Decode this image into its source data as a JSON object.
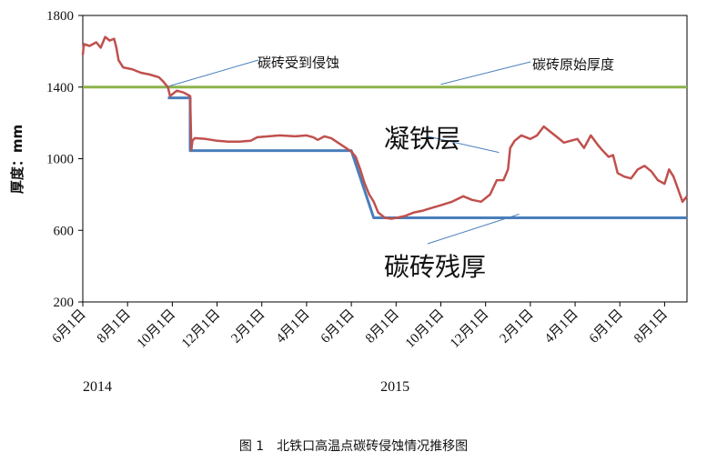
{
  "chart_data": {
    "type": "line",
    "title": "",
    "ylabel": "厚度：mm",
    "ylim": [
      200,
      1800
    ],
    "yticks": [
      200,
      600,
      1000,
      1400,
      1800
    ],
    "xlim": [
      0,
      27
    ],
    "x_unit": "months since 2014-06-01",
    "xticks": [
      {
        "x": 0,
        "label": "6月1日"
      },
      {
        "x": 2,
        "label": "8月1日"
      },
      {
        "x": 4,
        "label": "10月1日"
      },
      {
        "x": 6,
        "label": "12月1日"
      },
      {
        "x": 8,
        "label": "2月1日"
      },
      {
        "x": 10,
        "label": "4月1日"
      },
      {
        "x": 12,
        "label": "6月1日"
      },
      {
        "x": 14,
        "label": "8月1日"
      },
      {
        "x": 16,
        "label": "10月1日"
      },
      {
        "x": 18,
        "label": "12月1日"
      },
      {
        "x": 20,
        "label": "2月1日"
      },
      {
        "x": 22,
        "label": "4月1日"
      },
      {
        "x": 24,
        "label": "6月1日"
      },
      {
        "x": 26,
        "label": "8月1日"
      }
    ],
    "year_labels": [
      {
        "x": 0,
        "label": "2014"
      },
      {
        "x": 13.3,
        "label": "2015"
      }
    ],
    "series": [
      {
        "name": "碳砖原始厚度",
        "color": "#8DB34A",
        "points": [
          [
            0,
            1400
          ],
          [
            27,
            1400
          ]
        ]
      },
      {
        "name": "碳砖残厚",
        "color": "#4A7EBB",
        "points": [
          [
            3.8,
            1340
          ],
          [
            4.8,
            1340
          ],
          [
            4.8,
            1045
          ],
          [
            12.0,
            1045
          ],
          [
            13.0,
            670
          ],
          [
            27,
            670
          ]
        ]
      },
      {
        "name": "厚度",
        "color": "#C0504D",
        "points": [
          [
            0,
            1580
          ],
          [
            0.05,
            1640
          ],
          [
            0.3,
            1630
          ],
          [
            0.6,
            1650
          ],
          [
            0.8,
            1620
          ],
          [
            1.0,
            1680
          ],
          [
            1.2,
            1660
          ],
          [
            1.4,
            1670
          ],
          [
            1.5,
            1620
          ],
          [
            1.6,
            1550
          ],
          [
            1.8,
            1510
          ],
          [
            2.2,
            1500
          ],
          [
            2.6,
            1480
          ],
          [
            3.0,
            1470
          ],
          [
            3.4,
            1455
          ],
          [
            3.6,
            1430
          ],
          [
            3.8,
            1400
          ],
          [
            3.9,
            1350
          ],
          [
            4.2,
            1380
          ],
          [
            4.5,
            1370
          ],
          [
            4.8,
            1350
          ],
          [
            4.85,
            1050
          ],
          [
            4.9,
            1100
          ],
          [
            5.0,
            1115
          ],
          [
            5.5,
            1110
          ],
          [
            6.0,
            1100
          ],
          [
            6.5,
            1095
          ],
          [
            7.0,
            1095
          ],
          [
            7.5,
            1100
          ],
          [
            7.8,
            1120
          ],
          [
            8.3,
            1125
          ],
          [
            8.8,
            1130
          ],
          [
            9.5,
            1125
          ],
          [
            10.0,
            1130
          ],
          [
            10.3,
            1120
          ],
          [
            10.5,
            1105
          ],
          [
            10.8,
            1125
          ],
          [
            11.1,
            1115
          ],
          [
            12.0,
            1040
          ],
          [
            12.2,
            1010
          ],
          [
            12.4,
            940
          ],
          [
            12.6,
            860
          ],
          [
            12.8,
            800
          ],
          [
            13.0,
            760
          ],
          [
            13.2,
            700
          ],
          [
            13.5,
            670
          ],
          [
            13.8,
            665
          ],
          [
            14.1,
            672
          ],
          [
            14.4,
            680
          ],
          [
            14.8,
            700
          ],
          [
            15.2,
            710
          ],
          [
            15.6,
            725
          ],
          [
            16.0,
            740
          ],
          [
            16.5,
            760
          ],
          [
            17.0,
            790
          ],
          [
            17.4,
            770
          ],
          [
            17.8,
            760
          ],
          [
            18.2,
            800
          ],
          [
            18.5,
            880
          ],
          [
            18.8,
            880
          ],
          [
            19.0,
            940
          ],
          [
            19.1,
            1060
          ],
          [
            19.3,
            1100
          ],
          [
            19.6,
            1130
          ],
          [
            20.0,
            1110
          ],
          [
            20.3,
            1130
          ],
          [
            20.6,
            1180
          ],
          [
            20.9,
            1150
          ],
          [
            21.2,
            1120
          ],
          [
            21.5,
            1090
          ],
          [
            21.8,
            1100
          ],
          [
            22.1,
            1110
          ],
          [
            22.4,
            1060
          ],
          [
            22.7,
            1130
          ],
          [
            23.0,
            1080
          ],
          [
            23.2,
            1050
          ],
          [
            23.5,
            1010
          ],
          [
            23.7,
            1020
          ],
          [
            23.9,
            920
          ],
          [
            24.2,
            900
          ],
          [
            24.5,
            890
          ],
          [
            24.8,
            940
          ],
          [
            25.1,
            960
          ],
          [
            25.4,
            930
          ],
          [
            25.7,
            880
          ],
          [
            26.0,
            860
          ],
          [
            26.2,
            940
          ],
          [
            26.4,
            900
          ],
          [
            26.6,
            830
          ],
          [
            26.8,
            760
          ],
          [
            27.0,
            790
          ]
        ]
      }
    ],
    "annotations": [
      {
        "text": "碳砖受到侵蚀",
        "size": "small",
        "line_from": [
          3.85,
          1405
        ]
      },
      {
        "text": "碳砖原始厚度",
        "size": "small",
        "line_from": [
          16.0,
          1415
        ]
      },
      {
        "text": "凝铁层",
        "size": "big",
        "line_from": [
          18.6,
          1035
        ]
      },
      {
        "text": "碳砖残厚",
        "size": "big",
        "line_from": [
          19.5,
          690
        ]
      }
    ]
  },
  "caption": "图 1　北铁口高温点碳砖侵蚀情况推移图"
}
